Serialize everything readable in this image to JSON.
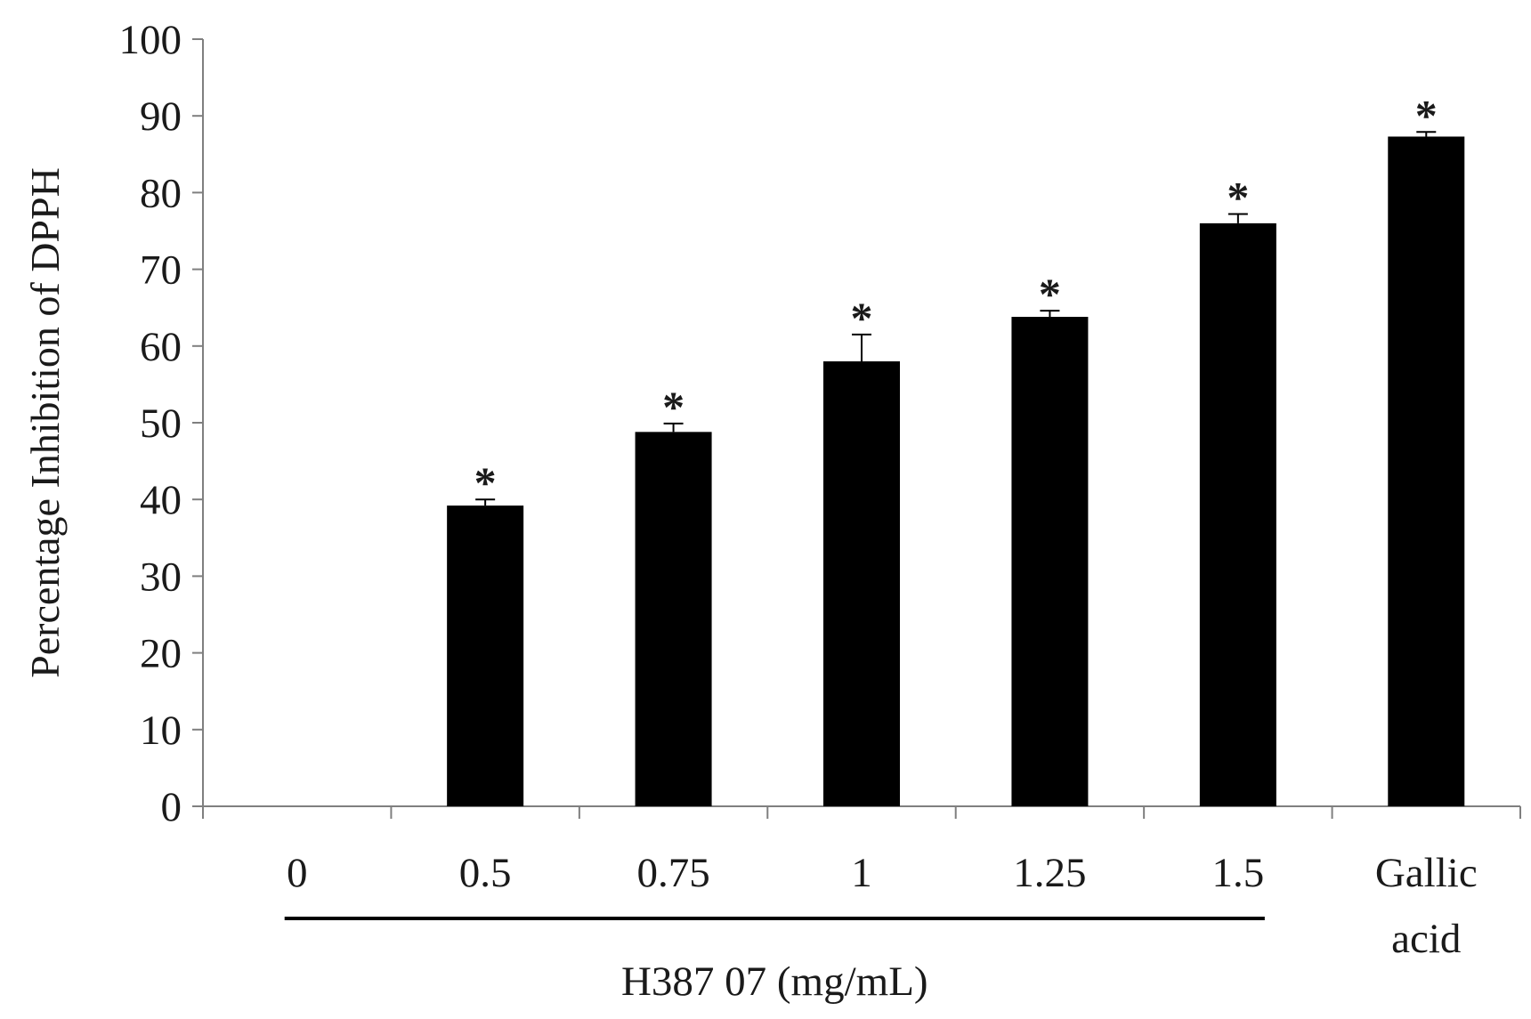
{
  "chart_data": {
    "type": "bar",
    "ylabel": "Percentage Inhibition of DPPH",
    "ylim": [
      0,
      100
    ],
    "yticks": [
      "0",
      "10",
      "20",
      "30",
      "40",
      "50",
      "60",
      "70",
      "80",
      "90",
      "100"
    ],
    "categories": [
      "0",
      "0.5",
      "0.75",
      "1",
      "1.25",
      "1.5",
      "Gallic acid"
    ],
    "category_lines": [
      [
        "0"
      ],
      [
        "0.5"
      ],
      [
        "0.75"
      ],
      [
        "1"
      ],
      [
        "1.25"
      ],
      [
        "1.5"
      ],
      [
        "Gallic",
        "acid"
      ]
    ],
    "values": [
      0,
      39.2,
      48.8,
      58.0,
      63.8,
      76.0,
      87.3
    ],
    "error": [
      0,
      0.8,
      1.1,
      3.5,
      0.8,
      1.2,
      0.6
    ],
    "significance": [
      "",
      "*",
      "*",
      "*",
      "*",
      "*",
      "*"
    ],
    "group_label": "H387 07 (mg/mL)",
    "group_span": [
      "0",
      "1.5"
    ],
    "bar_color": "#000000",
    "axis_color": "#7f7f7f",
    "grid": false,
    "legend": "none"
  }
}
